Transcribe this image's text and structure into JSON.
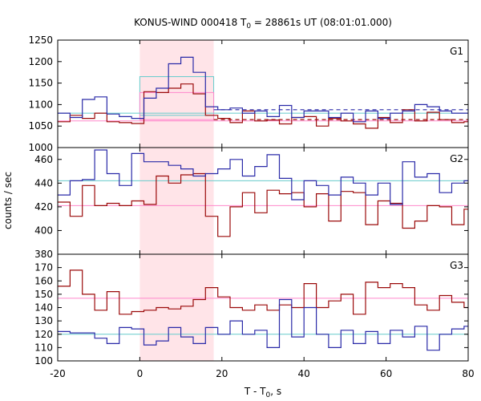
{
  "chart_data": {
    "type": "line",
    "title": {
      "prefix": "KONUS-WIND 000418 T",
      "sub": "0",
      "suffix": " = 28861s UT (08:01:01.000)"
    },
    "xlabel": {
      "prefix": "T - T",
      "sub": "0",
      "suffix": ", s"
    },
    "ylabel": "counts / sec",
    "xlim": [
      -20,
      80
    ],
    "x_ticks": [
      -20,
      0,
      20,
      40,
      60,
      80
    ],
    "highlight_interval": [
      0,
      18
    ],
    "colors": {
      "red_series": "#9b0a0a",
      "blue_series": "#2a2aa8",
      "red_background": "#ff88cc",
      "blue_background": "#66cccc",
      "highlight": "#ffe4e8"
    },
    "panels": [
      {
        "label": "G1",
        "ylim": [
          1000,
          1250
        ],
        "y_ticks": [
          1000,
          1050,
          1100,
          1150,
          1200,
          1250
        ],
        "bin_edges": [
          -20,
          -17,
          -14,
          -11,
          -8,
          -5,
          -2,
          1,
          4,
          7,
          10,
          13,
          16,
          19,
          22,
          25,
          28,
          31,
          34,
          37,
          40,
          43,
          46,
          49,
          52,
          55,
          58,
          61,
          64,
          67,
          70,
          73,
          76,
          79,
          80
        ],
        "series": [
          {
            "color": "red",
            "values": [
              1060,
              1075,
              1068,
              1080,
              1060,
              1058,
              1056,
              1130,
              1128,
              1138,
              1148,
              1125,
              1075,
              1068,
              1058,
              1085,
              1062,
              1064,
              1055,
              1070,
              1072,
              1050,
              1068,
              1062,
              1055,
              1045,
              1070,
              1058,
              1088,
              1062,
              1082,
              1065,
              1058,
              1060
            ]
          },
          {
            "color": "blue",
            "values": [
              1080,
              1070,
              1112,
              1118,
              1078,
              1072,
              1068,
              1115,
              1138,
              1195,
              1210,
              1175,
              1095,
              1088,
              1092,
              1080,
              1085,
              1072,
              1098,
              1070,
              1085,
              1085,
              1070,
              1080,
              1060,
              1085,
              1068,
              1080,
              1085,
              1100,
              1095,
              1085,
              1080,
              1080
            ]
          }
        ],
        "background_levels": {
          "red": {
            "solid": 1062,
            "dashed": 1065
          },
          "blue": {
            "solid": 1080,
            "dashed": 1088
          }
        },
        "boxes": [
          {
            "color": "blue",
            "x": [
              0,
              18
            ],
            "y": [
              1075,
              1165
            ]
          },
          {
            "color": "red",
            "x": [
              0,
              18
            ],
            "y": [
              1065,
              1128
            ]
          }
        ]
      },
      {
        "label": "G2",
        "ylim": [
          380,
          470
        ],
        "y_ticks": [
          380,
          400,
          420,
          440,
          460
        ],
        "bin_edges": [
          -20,
          -17,
          -14,
          -11,
          -8,
          -5,
          -2,
          1,
          4,
          7,
          10,
          13,
          16,
          19,
          22,
          25,
          28,
          31,
          34,
          37,
          40,
          43,
          46,
          49,
          52,
          55,
          58,
          61,
          64,
          67,
          70,
          73,
          76,
          79,
          80
        ],
        "series": [
          {
            "color": "red",
            "values": [
              424,
              412,
              438,
              421,
              423,
              421,
              425,
              422,
              446,
              440,
              447,
              448,
              412,
              395,
              420,
              432,
              415,
              434,
              431,
              432,
              420,
              431,
              408,
              433,
              432,
              405,
              425,
              423,
              402,
              408,
              421,
              420,
              405,
              418
            ]
          },
          {
            "color": "blue",
            "values": [
              430,
              442,
              443,
              468,
              448,
              438,
              465,
              458,
              458,
              455,
              452,
              446,
              448,
              452,
              460,
              446,
              454,
              464,
              444,
              426,
              442,
              438,
              430,
              445,
              440,
              430,
              440,
              422,
              458,
              445,
              448,
              432,
              440,
              442
            ]
          }
        ],
        "background_levels": {
          "red": {
            "solid": 421
          },
          "blue": {
            "solid": 442
          }
        },
        "boxes": []
      },
      {
        "label": "G3",
        "ylim": [
          100,
          180
        ],
        "y_ticks": [
          100,
          110,
          120,
          130,
          140,
          150,
          160,
          170
        ],
        "bin_edges": [
          -20,
          -17,
          -14,
          -11,
          -8,
          -5,
          -2,
          1,
          4,
          7,
          10,
          13,
          16,
          19,
          22,
          25,
          28,
          31,
          34,
          37,
          40,
          43,
          46,
          49,
          52,
          55,
          58,
          61,
          64,
          67,
          70,
          73,
          76,
          79,
          80
        ],
        "series": [
          {
            "color": "red",
            "values": [
              156,
              168,
              150,
              138,
              152,
              135,
              137,
              138,
              140,
              139,
              141,
              146,
              155,
              148,
              140,
              138,
              142,
              138,
              142,
              140,
              158,
              140,
              145,
              150,
              135,
              159,
              155,
              158,
              155,
              142,
              138,
              149,
              144,
              140
            ]
          },
          {
            "color": "blue",
            "values": [
              122,
              121,
              121,
              117,
              113,
              125,
              124,
              112,
              115,
              125,
              118,
              113,
              125,
              120,
              130,
              120,
              123,
              110,
              146,
              118,
              140,
              120,
              110,
              123,
              113,
              122,
              113,
              123,
              118,
              126,
              108,
              120,
              124,
              126
            ]
          }
        ],
        "background_levels": {
          "red": {
            "solid": 147
          },
          "blue": {
            "solid": 120
          }
        },
        "boxes": []
      }
    ]
  }
}
